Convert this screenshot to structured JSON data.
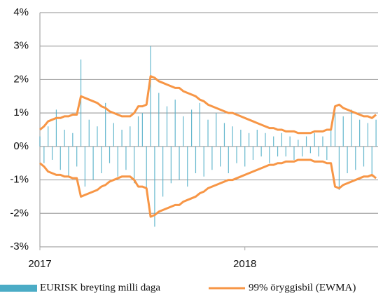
{
  "chart_data": {
    "type": "combo",
    "x": [
      2017.0,
      2017.02,
      2017.04,
      2017.06,
      2017.08,
      2017.1,
      2017.12,
      2017.14,
      2017.16,
      2017.18,
      2017.2,
      2017.22,
      2017.24,
      2017.26,
      2017.28,
      2017.3,
      2017.32,
      2017.34,
      2017.36,
      2017.38,
      2017.4,
      2017.42,
      2017.44,
      2017.46,
      2017.48,
      2017.5,
      2017.52,
      2017.54,
      2017.56,
      2017.58,
      2017.6,
      2017.62,
      2017.64,
      2017.66,
      2017.68,
      2017.7,
      2017.72,
      2017.74,
      2017.76,
      2017.78,
      2017.8,
      2017.82,
      2017.84,
      2017.86,
      2017.88,
      2017.9,
      2017.92,
      2017.94,
      2017.96,
      2017.98,
      2018.0,
      2018.02,
      2018.04,
      2018.06,
      2018.08,
      2018.1,
      2018.12,
      2018.14,
      2018.16,
      2018.18,
      2018.2,
      2018.22,
      2018.24,
      2018.26,
      2018.28,
      2018.3,
      2018.32,
      2018.34,
      2018.36,
      2018.38,
      2018.4,
      2018.42,
      2018.44,
      2018.46,
      2018.48,
      2018.5,
      2018.52,
      2018.54,
      2018.56,
      2018.58,
      2018.6,
      2018.62,
      2018.64
    ],
    "series": [
      {
        "name": "EURISK breyting milli daga",
        "type": "bar",
        "color": "#4bacc6",
        "values": [
          0.3,
          -0.5,
          0.6,
          -0.4,
          1.1,
          -0.7,
          0.5,
          -0.9,
          0.4,
          -0.6,
          2.6,
          -1.2,
          0.8,
          -1.0,
          0.6,
          -0.8,
          1.3,
          -0.5,
          0.7,
          -0.9,
          0.5,
          -0.7,
          0.6,
          -1.1,
          0.9,
          1.0,
          -1.3,
          3.0,
          -2.4,
          1.6,
          -1.5,
          1.2,
          -1.1,
          1.4,
          -1.0,
          0.9,
          -1.2,
          1.1,
          -0.8,
          1.3,
          -0.9,
          0.8,
          -0.7,
          1.0,
          -0.6,
          0.7,
          -0.8,
          0.6,
          -0.5,
          0.5,
          -0.6,
          0.4,
          -0.4,
          0.5,
          -0.3,
          0.4,
          -0.5,
          0.3,
          -0.3,
          0.4,
          -0.3,
          0.3,
          -0.4,
          0.2,
          -0.3,
          0.3,
          -0.2,
          0.4,
          -0.3,
          0.3,
          -0.4,
          0.5,
          1.0,
          -1.3,
          0.9,
          -0.8,
          1.1,
          -0.7,
          0.8,
          -0.6,
          0.7,
          -0.9,
          0.8
        ]
      },
      {
        "name": "99% öryggisbil (EWMA)",
        "type": "band",
        "color": "#f79646",
        "values": [
          0.5,
          0.6,
          0.75,
          0.8,
          0.85,
          0.85,
          0.9,
          0.9,
          0.95,
          0.95,
          1.5,
          1.45,
          1.4,
          1.35,
          1.3,
          1.2,
          1.15,
          1.05,
          1.0,
          0.95,
          0.9,
          0.9,
          0.9,
          1.0,
          1.2,
          1.2,
          1.25,
          2.1,
          2.05,
          1.95,
          1.9,
          1.85,
          1.8,
          1.75,
          1.75,
          1.65,
          1.6,
          1.55,
          1.5,
          1.4,
          1.35,
          1.25,
          1.2,
          1.15,
          1.1,
          1.05,
          1.0,
          1.0,
          0.95,
          0.9,
          0.85,
          0.8,
          0.75,
          0.7,
          0.65,
          0.6,
          0.55,
          0.55,
          0.5,
          0.5,
          0.45,
          0.45,
          0.45,
          0.4,
          0.4,
          0.4,
          0.4,
          0.45,
          0.45,
          0.45,
          0.5,
          0.5,
          1.2,
          1.25,
          1.15,
          1.1,
          1.05,
          1.0,
          0.95,
          0.9,
          0.9,
          0.85,
          0.95
        ],
        "lower": [
          -0.5,
          -0.6,
          -0.75,
          -0.8,
          -0.85,
          -0.85,
          -0.9,
          -0.9,
          -0.95,
          -0.95,
          -1.5,
          -1.45,
          -1.4,
          -1.35,
          -1.3,
          -1.2,
          -1.15,
          -1.05,
          -1.0,
          -0.95,
          -0.9,
          -0.9,
          -0.9,
          -1.0,
          -1.2,
          -1.2,
          -1.25,
          -2.1,
          -2.05,
          -1.95,
          -1.9,
          -1.85,
          -1.8,
          -1.75,
          -1.75,
          -1.65,
          -1.6,
          -1.55,
          -1.5,
          -1.4,
          -1.35,
          -1.25,
          -1.2,
          -1.15,
          -1.1,
          -1.05,
          -1.0,
          -1.0,
          -0.95,
          -0.9,
          -0.85,
          -0.8,
          -0.75,
          -0.7,
          -0.65,
          -0.6,
          -0.55,
          -0.55,
          -0.5,
          -0.5,
          -0.45,
          -0.45,
          -0.45,
          -0.4,
          -0.4,
          -0.4,
          -0.4,
          -0.45,
          -0.45,
          -0.45,
          -0.5,
          -0.5,
          -1.2,
          -1.25,
          -1.15,
          -1.1,
          -1.05,
          -1.0,
          -0.95,
          -0.9,
          -0.9,
          -0.85,
          -0.95
        ]
      }
    ],
    "xlim": [
      2017,
      2018.65
    ],
    "xticks": [
      2017,
      2018
    ],
    "ylim": [
      -3,
      4
    ],
    "yticks": [
      {
        "value": -3,
        "label": "-3%"
      },
      {
        "value": -2,
        "label": "-2%"
      },
      {
        "value": -1,
        "label": "-1%"
      },
      {
        "value": 0,
        "label": "0%"
      },
      {
        "value": 1,
        "label": "1%"
      },
      {
        "value": 2,
        "label": "2%"
      },
      {
        "value": 3,
        "label": "3%"
      },
      {
        "value": 4,
        "label": "4%"
      }
    ],
    "grid": true,
    "legend": "bottom"
  }
}
